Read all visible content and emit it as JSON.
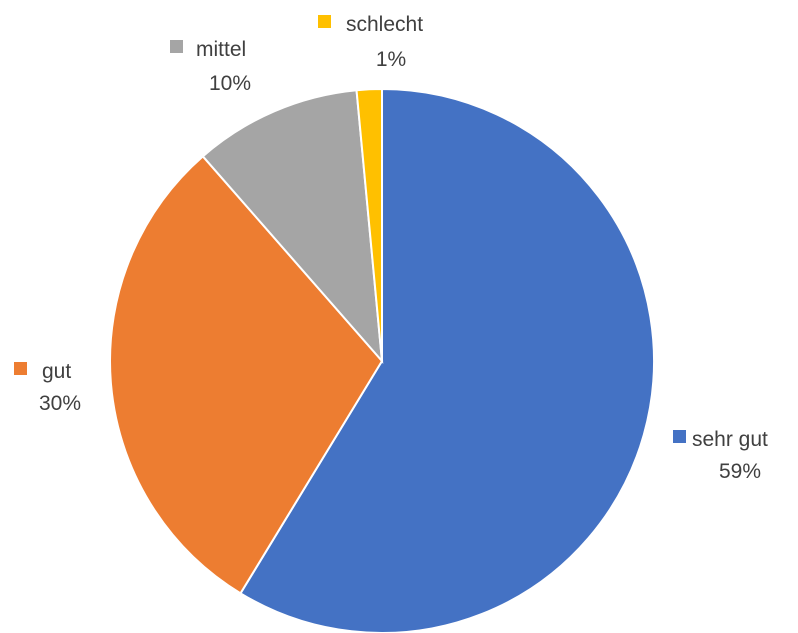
{
  "chart_data": {
    "type": "pie",
    "title": "",
    "slices": [
      {
        "label": "sehr gut",
        "value": 59,
        "pct_label": "59%",
        "color": "#4472C4"
      },
      {
        "label": "gut",
        "value": 30,
        "pct_label": "30%",
        "color": "#ED7D31"
      },
      {
        "label": "mittel",
        "value": 10,
        "pct_label": "10%",
        "color": "#A5A5A5"
      },
      {
        "label": "schlecht",
        "value": 1.5,
        "pct_label": "1%",
        "color": "#FFC000"
      }
    ],
    "data_labels": "category name and percentage with legend key",
    "legend": "none",
    "start_angle": "12 o'clock",
    "direction": "clockwise"
  }
}
